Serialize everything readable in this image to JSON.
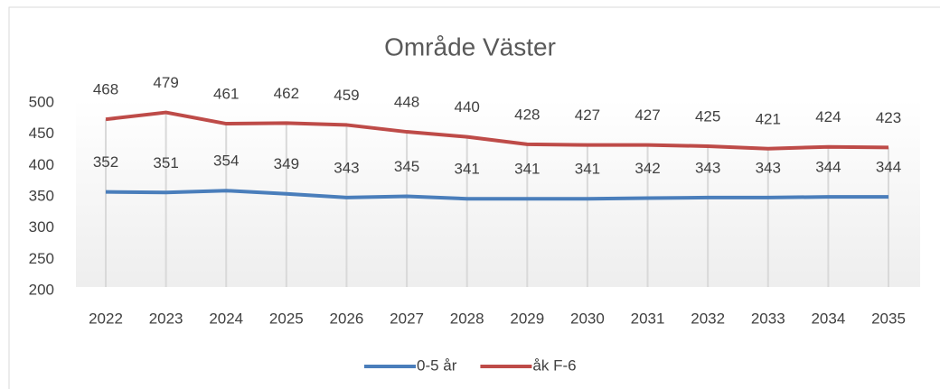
{
  "chart_data": {
    "type": "line",
    "title": "Område Väster",
    "categories": [
      "2022",
      "2023",
      "2024",
      "2025",
      "2026",
      "2027",
      "2028",
      "2029",
      "2030",
      "2031",
      "2032",
      "2033",
      "2034",
      "2035"
    ],
    "series": [
      {
        "name": "0-5 år",
        "color": "#4a7ebb",
        "values": [
          352,
          351,
          354,
          349,
          343,
          345,
          341,
          341,
          341,
          342,
          343,
          343,
          344,
          344
        ]
      },
      {
        "name": "åk F-6",
        "color": "#be4b48",
        "values": [
          468,
          479,
          461,
          462,
          459,
          448,
          440,
          428,
          427,
          427,
          425,
          421,
          424,
          423
        ]
      }
    ],
    "ylim": [
      200,
      500
    ],
    "yticks": [
      200,
      250,
      300,
      350,
      400,
      450,
      500
    ],
    "legend": "bottom"
  }
}
